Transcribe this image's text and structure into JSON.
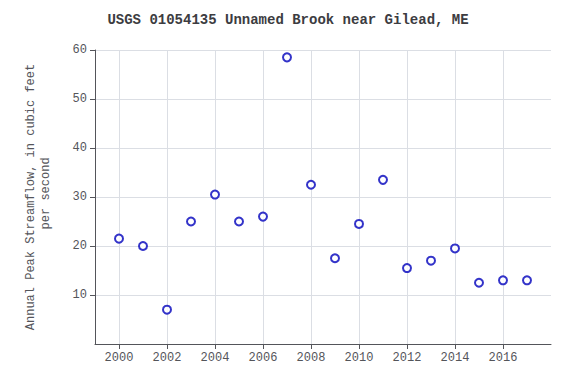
{
  "chart_data": {
    "type": "scatter",
    "title": "USGS 01054135 Unnamed Brook near Gilead, ME",
    "ylabel": "Annual Peak Streamflow, in cubic feet\n per second",
    "x": [
      2000,
      2001,
      2002,
      2003,
      2004,
      2005,
      2006,
      2007,
      2008,
      2009,
      2010,
      2011,
      2012,
      2013,
      2014,
      2015,
      2016,
      2017
    ],
    "values": [
      21.5,
      20.0,
      7.0,
      25.0,
      30.5,
      25.0,
      26.0,
      58.5,
      32.5,
      17.5,
      24.5,
      33.5,
      15.5,
      17.0,
      19.5,
      12.5,
      13.0,
      13.0
    ],
    "color": "#0000bb",
    "marker": "open_circle",
    "xlim": [
      1999,
      2018
    ],
    "ylim": [
      0,
      60
    ],
    "xticks": [
      2000,
      2002,
      2004,
      2006,
      2008,
      2010,
      2012,
      2014,
      2016
    ],
    "yticks": [
      10,
      20,
      30,
      40,
      50,
      60
    ],
    "grid": true
  }
}
